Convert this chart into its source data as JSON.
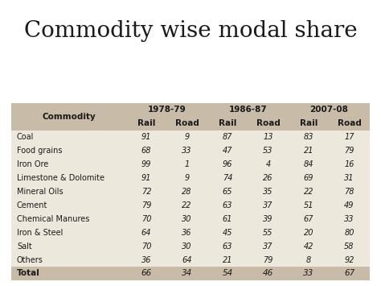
{
  "title": "Commodity wise modal share",
  "title_fontsize": 20,
  "background_color": "#FFFFFF",
  "col_header_1": "Commodity",
  "period_headers": [
    "1978-79",
    "1986-87",
    "2007-08"
  ],
  "sub_headers": [
    "Rail",
    "Road",
    "Rail",
    "Road",
    "Rail",
    "Road"
  ],
  "commodities": [
    "Coal",
    "Food grains",
    "Iron Ore",
    "Limestone & Dolomite",
    "Mineral Oils",
    "Cement",
    "Chemical Manures",
    "Iron & Steel",
    "Salt",
    "Others"
  ],
  "data": [
    [
      91,
      9,
      87,
      13,
      83,
      17
    ],
    [
      68,
      33,
      47,
      53,
      21,
      79
    ],
    [
      99,
      1,
      96,
      4,
      84,
      16
    ],
    [
      91,
      9,
      74,
      26,
      69,
      31
    ],
    [
      72,
      28,
      65,
      35,
      22,
      78
    ],
    [
      79,
      22,
      63,
      37,
      51,
      49
    ],
    [
      70,
      30,
      61,
      39,
      67,
      33
    ],
    [
      64,
      36,
      45,
      55,
      20,
      80
    ],
    [
      70,
      30,
      63,
      37,
      42,
      58
    ],
    [
      36,
      64,
      21,
      79,
      8,
      92
    ]
  ],
  "total_row": [
    "Total",
    66,
    34,
    54,
    46,
    33,
    67
  ],
  "header_color": "#C8BCA8",
  "data_row_color": "#EDE8DC",
  "total_row_color": "#C8BCA8",
  "text_color": "#1A1A1A"
}
